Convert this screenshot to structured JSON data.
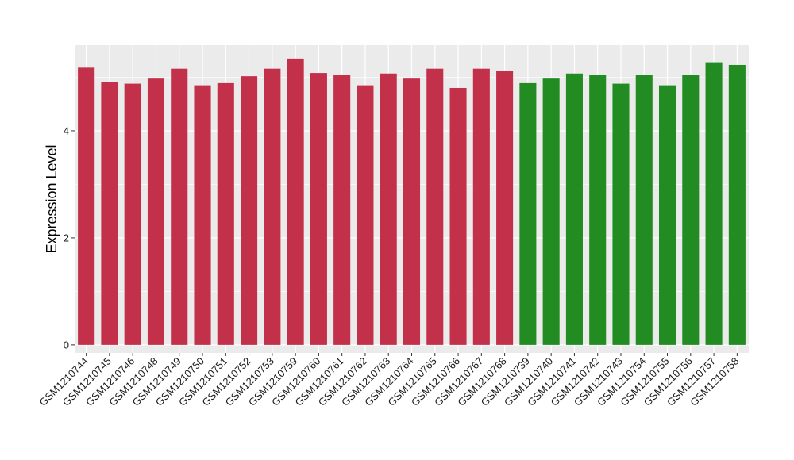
{
  "chart_data": {
    "type": "bar",
    "title": "",
    "xlabel": "",
    "ylabel": "Expression Level",
    "ylim": [
      -0.15,
      5.6
    ],
    "yticks": [
      0,
      2,
      4
    ],
    "grid": true,
    "legend": "none",
    "colors": {
      "panel_background": "#ebebeb",
      "grid": "#ffffff",
      "group_1": "#c3304a",
      "group_2": "#228b22"
    },
    "categories": [
      "GSM1210744",
      "GSM1210745",
      "GSM1210746",
      "GSM1210748",
      "GSM1210749",
      "GSM1210750",
      "GSM1210751",
      "GSM1210752",
      "GSM1210753",
      "GSM1210759",
      "GSM1210760",
      "GSM1210761",
      "GSM1210762",
      "GSM1210763",
      "GSM1210764",
      "GSM1210765",
      "GSM1210766",
      "GSM1210767",
      "GSM1210768",
      "GSM1210739",
      "GSM1210740",
      "GSM1210741",
      "GSM1210742",
      "GSM1210743",
      "GSM1210754",
      "GSM1210755",
      "GSM1210756",
      "GSM1210757",
      "GSM1210758"
    ],
    "values": [
      5.18,
      4.91,
      4.88,
      4.99,
      5.16,
      4.85,
      4.89,
      5.02,
      5.16,
      5.35,
      5.08,
      5.05,
      4.85,
      5.07,
      4.99,
      5.16,
      4.8,
      5.16,
      5.12,
      4.89,
      4.99,
      5.07,
      5.05,
      4.88,
      5.04,
      4.85,
      5.05,
      5.28,
      5.23
    ],
    "groups": [
      1,
      1,
      1,
      1,
      1,
      1,
      1,
      1,
      1,
      1,
      1,
      1,
      1,
      1,
      1,
      1,
      1,
      1,
      1,
      2,
      2,
      2,
      2,
      2,
      2,
      2,
      2,
      2,
      2
    ]
  }
}
